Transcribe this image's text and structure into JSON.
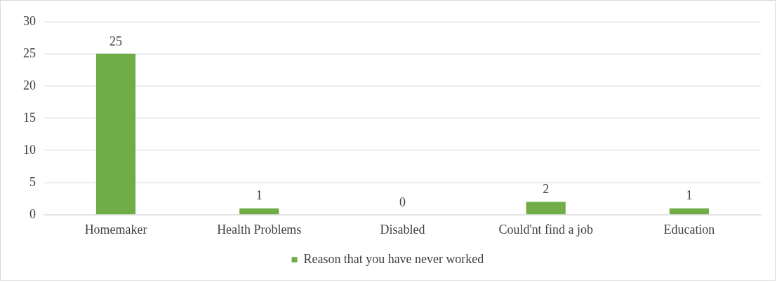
{
  "chart_data": {
    "type": "bar",
    "categories": [
      "Homemaker",
      "Health Problems",
      "Disabled",
      "Could'nt find a job",
      "Education"
    ],
    "series": [
      {
        "name": "Reason that you have never worked",
        "color": "#70ad47",
        "values": [
          25,
          1,
          0,
          2,
          1
        ]
      }
    ],
    "ylim": [
      0,
      30
    ],
    "yticks": [
      0,
      5,
      10,
      15,
      20,
      25,
      30
    ],
    "grid": "y",
    "legend": "bottom",
    "data_labels": true
  }
}
